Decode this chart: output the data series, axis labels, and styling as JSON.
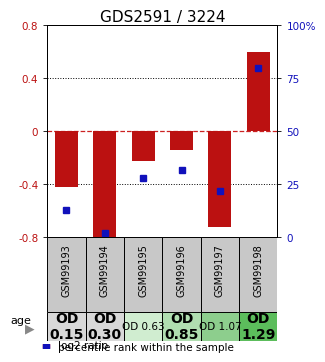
{
  "title": "GDS2591 / 3224",
  "samples": [
    "GSM99193",
    "GSM99194",
    "GSM99195",
    "GSM99196",
    "GSM99197",
    "GSM99198"
  ],
  "log2_ratio": [
    -0.42,
    -0.83,
    -0.22,
    -0.14,
    -0.72,
    0.6
  ],
  "percentile_rank": [
    13,
    2,
    28,
    32,
    22,
    80
  ],
  "ylim_left": [
    -0.8,
    0.8
  ],
  "ylim_right": [
    0,
    100
  ],
  "yticks_left": [
    -0.8,
    -0.4,
    0,
    0.4,
    0.8
  ],
  "yticks_right": [
    0,
    25,
    50,
    75,
    100
  ],
  "ytick_labels_right": [
    "0",
    "25",
    "50",
    "75",
    "100%"
  ],
  "age_labels": [
    "OD\n0.15",
    "OD\n0.30",
    "OD 0.63",
    "OD\n0.85",
    "OD 1.07",
    "OD\n1.29"
  ],
  "age_fontsize": [
    10,
    10,
    7.5,
    10,
    7.5,
    10
  ],
  "age_bold": [
    true,
    true,
    false,
    true,
    false,
    true
  ],
  "age_bg_colors": [
    "#d8d8d8",
    "#d8d8d8",
    "#d0edd0",
    "#b0deb0",
    "#8dce8d",
    "#5cbd5c"
  ],
  "bar_color_red": "#bb1111",
  "bar_color_blue": "#1111bb",
  "bar_width": 0.6,
  "zero_line_color": "#cc2222",
  "sample_bg_color": "#c8c8c8",
  "legend_red_label": "log2 ratio",
  "legend_blue_label": "percentile rank within the sample",
  "title_fontsize": 11
}
